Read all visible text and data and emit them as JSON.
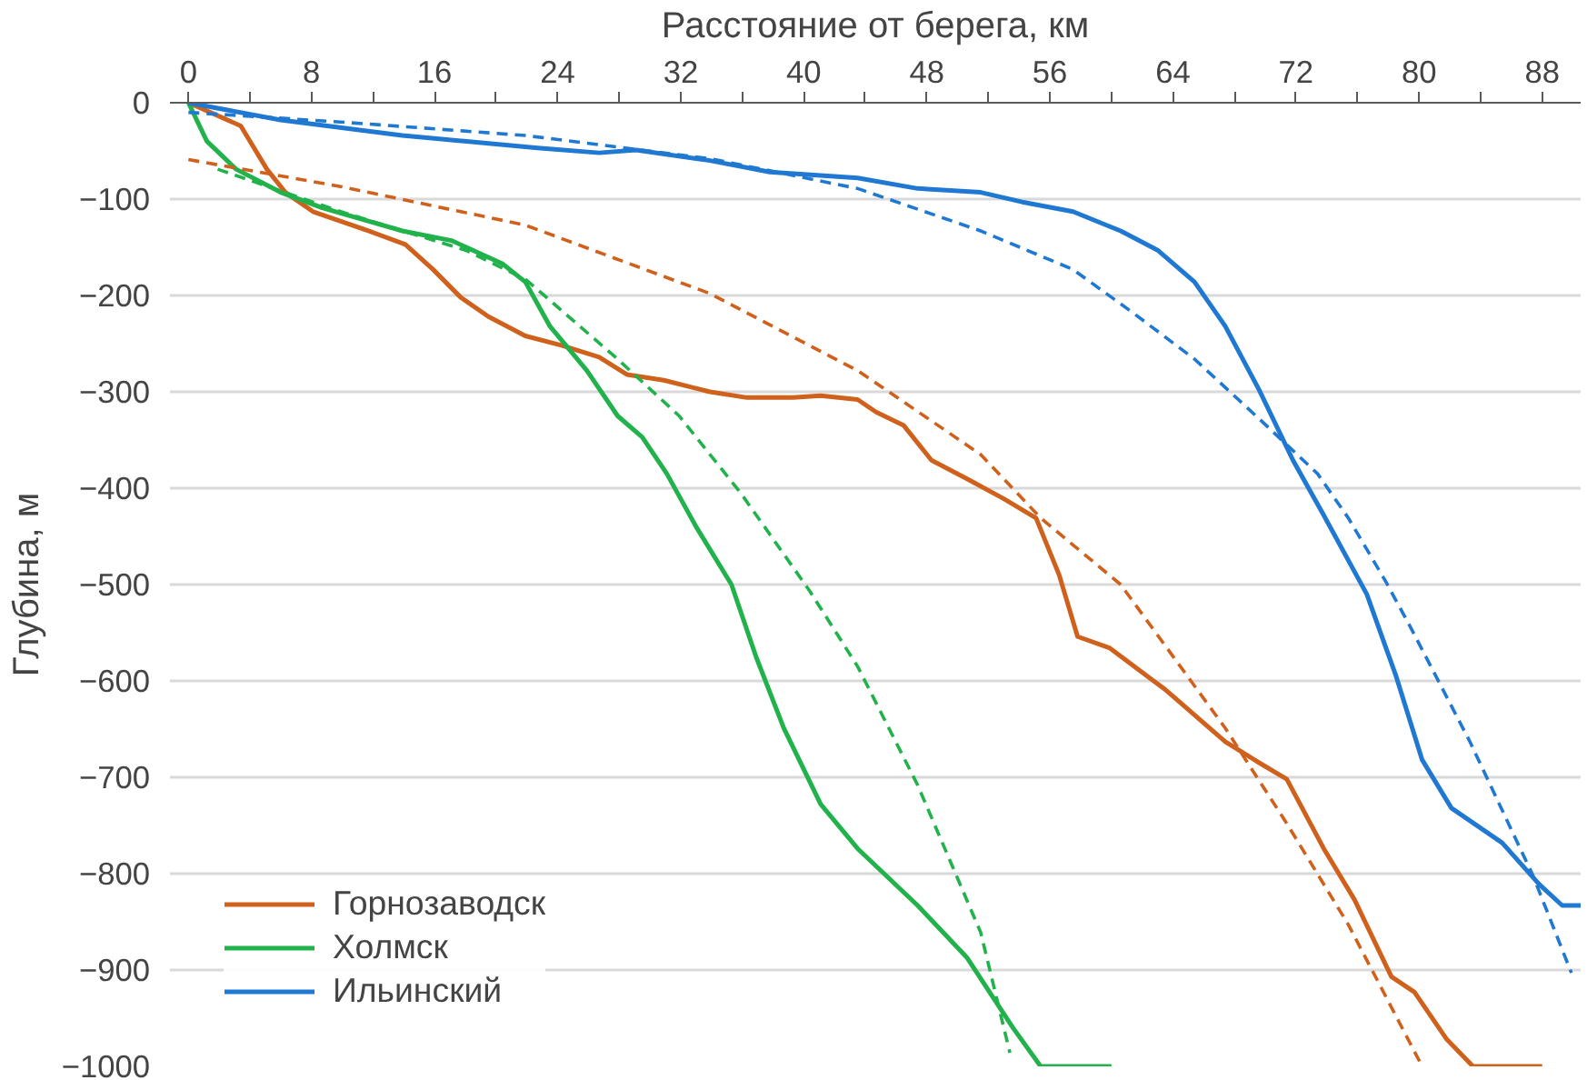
{
  "chart_data": {
    "type": "line",
    "xlabel": "Расстояние от берега, км",
    "ylabel": "Глубина, м",
    "xlim": [
      -1.2,
      90.5
    ],
    "ylim": [
      -1000,
      0
    ],
    "xticks": [
      0,
      {
        "value": 4,
        "label": null
      },
      8,
      {
        "value": 12,
        "label": null
      },
      16,
      {
        "value": 20,
        "label": null
      },
      24,
      {
        "value": 28,
        "label": null
      },
      32,
      {
        "value": 36,
        "label": null
      },
      40,
      {
        "value": 44,
        "label": null
      },
      48,
      {
        "value": 52,
        "label": null
      },
      56,
      {
        "value": 60,
        "label": null
      },
      64,
      {
        "value": 68,
        "label": null
      },
      72,
      {
        "value": 76,
        "label": null
      },
      80,
      {
        "value": 84,
        "label": null
      },
      88
    ],
    "yticks": [
      0,
      -100,
      -200,
      -300,
      -400,
      -500,
      -600,
      -700,
      -800,
      -900,
      -1000
    ],
    "grid": "y",
    "legend": "bottom left",
    "series": [
      {
        "name": "Горнозаводск",
        "color": "#d0611c",
        "line_style": "solid",
        "x": [
          0,
          3.4,
          5.1,
          6.3,
          8.1,
          9.9,
          11.7,
          14.1,
          15.9,
          17.7,
          19.5,
          21.9,
          24.3,
          26.7,
          28.5,
          30.9,
          33.9,
          36.3,
          39.3,
          41.1,
          43.5,
          44.7,
          46.5,
          48.3,
          50.7,
          53.0,
          55.1,
          56.6,
          57.8,
          59.9,
          63.5,
          67.4,
          69.4,
          71.4,
          73.8,
          75.8,
          78.2,
          79.7,
          81.8,
          83.5,
          88
        ],
        "values": [
          0,
          -24,
          -69,
          -93,
          -113,
          -123,
          -133,
          -147,
          -173,
          -202,
          -222,
          -242,
          -252,
          -264,
          -282,
          -288,
          -300,
          -306,
          -306,
          -304,
          -308,
          -321,
          -335,
          -371,
          -391,
          -411,
          -431,
          -490,
          -554,
          -566,
          -609,
          -663,
          -683,
          -702,
          -774,
          -827,
          -907,
          -923,
          -972,
          -1000,
          -1000
        ]
      },
      {
        "name": "Холмск",
        "color": "#22b24c",
        "line_style": "solid",
        "x": [
          0,
          1.2,
          3.1,
          6.0,
          8.7,
          13.9,
          17.1,
          20.4,
          21.9,
          23.5,
          25.9,
          27.9,
          29.5,
          31.1,
          33.0,
          35.3,
          36.9,
          38.7,
          41.1,
          43.5,
          47.4,
          50.6,
          53.6,
          55.4,
          60
        ],
        "values": [
          0,
          -40,
          -69,
          -93,
          -109,
          -133,
          -143,
          -167,
          -186,
          -232,
          -278,
          -325,
          -347,
          -385,
          -440,
          -500,
          -575,
          -649,
          -728,
          -774,
          -833,
          -887,
          -960,
          -1000,
          -1000
        ]
      },
      {
        "name": "Ильинский",
        "color": "#1f78d1",
        "line_style": "solid",
        "x": [
          0,
          6,
          13.9,
          22.7,
          26.7,
          29.1,
          33.9,
          37.8,
          43.5,
          47.4,
          51.5,
          54.2,
          57.5,
          60.6,
          63.0,
          65.4,
          67.4,
          69.6,
          71.8,
          73.8,
          76.6,
          78.5,
          80.2,
          82.1,
          85.4,
          87.8,
          89.3,
          90.5
        ],
        "values": [
          0,
          -18,
          -34,
          -47,
          -52,
          -49,
          -60,
          -72,
          -78,
          -89,
          -93,
          -103,
          -113,
          -133,
          -153,
          -186,
          -232,
          -298,
          -371,
          -428,
          -510,
          -595,
          -682,
          -732,
          -768,
          -811,
          -833,
          -833
        ]
      },
      {
        "color": "#d0611c",
        "line_style": "dashed",
        "x": [
          0,
          9.9,
          21.9,
          33.9,
          43.5,
          51.5,
          55.4,
          60.6,
          67.4,
          71.4,
          75.4,
          80.2
        ],
        "values": [
          -59,
          -87,
          -127,
          -198,
          -278,
          -365,
          -431,
          -500,
          -649,
          -748,
          -853,
          -1000
        ]
      },
      {
        "color": "#22b24c",
        "line_style": "dashed",
        "x": [
          1.9,
          9.9,
          18,
          21.9,
          27.9,
          31.9,
          35.9,
          40.4,
          43.5,
          47.4,
          51.5,
          53.4
        ],
        "values": [
          -69,
          -113,
          -153,
          -183,
          -266,
          -325,
          -405,
          -507,
          -585,
          -708,
          -861,
          -986
        ]
      },
      {
        "color": "#1f78d1",
        "line_style": "dashed",
        "x": [
          0,
          9.9,
          21.9,
          33.9,
          43.5,
          51.5,
          57.5,
          61.4,
          65.4,
          69.4,
          73.4,
          75.4,
          77.8,
          79.4,
          83.3,
          87.4,
          89.9
        ],
        "values": [
          -10,
          -20,
          -34,
          -58,
          -89,
          -133,
          -173,
          -218,
          -266,
          -325,
          -385,
          -431,
          -496,
          -543,
          -663,
          -802,
          -903
        ]
      }
    ]
  }
}
